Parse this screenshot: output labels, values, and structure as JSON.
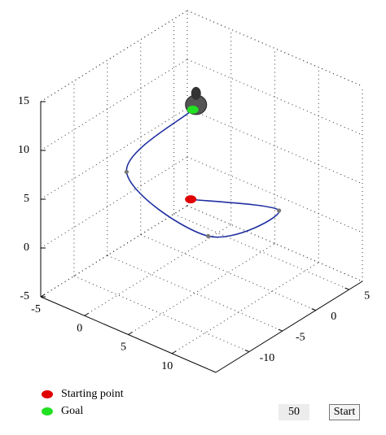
{
  "chart_data": {
    "type": "line3d",
    "xlim": [
      -5,
      15
    ],
    "ylim": [
      -15,
      7
    ],
    "zlim": [
      -5,
      15
    ],
    "xticks": [
      -5,
      0,
      5,
      10
    ],
    "yticks": [
      -10,
      -5,
      0,
      5
    ],
    "zticks": [
      -5,
      0,
      5,
      10,
      15
    ],
    "grid": true,
    "series": [
      {
        "color": "#1f2fa0",
        "x": [
          3,
          7,
          5,
          1,
          4
        ],
        "y": [
          -3,
          5,
          -3,
          -10,
          -4
        ],
        "z": [
          3,
          0,
          0,
          8,
          13
        ]
      }
    ],
    "markers": [
      {
        "name": "Starting point",
        "color": "#e00000",
        "x": 3,
        "y": -3,
        "z": 3
      },
      {
        "name": "Goal",
        "color": "#22e022",
        "x": 4,
        "y": -4,
        "z": 13
      }
    ],
    "waypoint_color": "#777777"
  },
  "controls": {
    "value": 50,
    "button": "Start"
  }
}
